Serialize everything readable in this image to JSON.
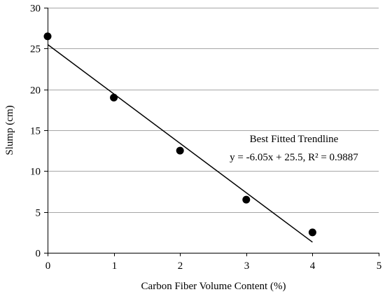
{
  "chart_data": {
    "type": "scatter",
    "xlabel": "Carbon Fiber Volume Content (%)",
    "ylabel": "Slump (cm)",
    "xlim": [
      0,
      5
    ],
    "ylim": [
      0,
      30
    ],
    "xticks": [
      0,
      1,
      2,
      3,
      4,
      5
    ],
    "yticks": [
      0,
      5,
      10,
      15,
      20,
      25,
      30
    ],
    "grid": "horizontal",
    "points": [
      {
        "x": 0,
        "y": 26.5
      },
      {
        "x": 1,
        "y": 19.0
      },
      {
        "x": 2,
        "y": 12.5
      },
      {
        "x": 3,
        "y": 6.5
      },
      {
        "x": 4,
        "y": 2.5
      }
    ],
    "trendline": {
      "slope": -6.05,
      "intercept": 25.5,
      "x_range": [
        0,
        4
      ]
    },
    "annotation": {
      "line1": "Best Fitted Trendline",
      "line2": "y = -6.05x + 25.5, R² = 0.9887"
    },
    "colors": {
      "points": "#000000",
      "trendline": "#000000",
      "grid": "#a6a6a6",
      "axes": "#000000"
    }
  }
}
